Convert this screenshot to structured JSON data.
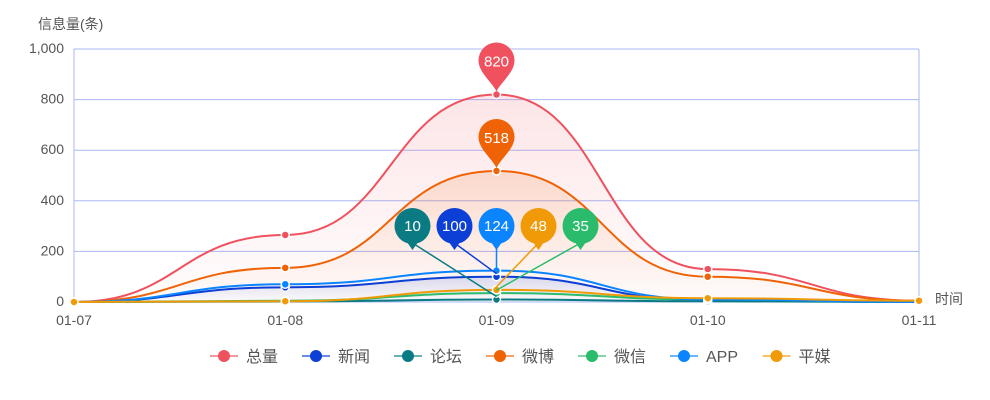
{
  "chart_data": {
    "type": "line",
    "ylabel": "信息量(条)",
    "xlabel": "时间",
    "categories": [
      "01-07",
      "01-08",
      "01-09",
      "01-10",
      "01-11"
    ],
    "ylim": [
      0,
      1000
    ],
    "yticks": [
      0,
      200,
      400,
      600,
      800,
      1000
    ],
    "ytick_labels": [
      "0",
      "200",
      "400",
      "600",
      "800",
      "1,000"
    ],
    "grid": true,
    "legend_position": "bottom",
    "series": [
      {
        "name": "总量",
        "color": "#f0515e",
        "values": [
          0,
          265,
          820,
          130,
          5
        ],
        "area": true,
        "max_label": "820"
      },
      {
        "name": "新闻",
        "color": "#0b3fd6",
        "values": [
          0,
          58,
          100,
          6,
          0
        ],
        "area": true,
        "max_label": "100"
      },
      {
        "name": "论坛",
        "color": "#0a7b83",
        "values": [
          0,
          2,
          10,
          3,
          0
        ],
        "area": false,
        "max_label": "10"
      },
      {
        "name": "微博",
        "color": "#ef6205",
        "values": [
          0,
          135,
          518,
          100,
          5
        ],
        "area": true,
        "max_label": "518"
      },
      {
        "name": "微信",
        "color": "#2bbb6c",
        "values": [
          0,
          5,
          35,
          10,
          0
        ],
        "area": false,
        "max_label": "35"
      },
      {
        "name": "APP",
        "color": "#0a84ff",
        "values": [
          0,
          70,
          124,
          10,
          0
        ],
        "area": false,
        "max_label": "124"
      },
      {
        "name": "平媒",
        "color": "#f09a08",
        "values": [
          0,
          3,
          48,
          15,
          5
        ],
        "area": false,
        "max_label": "48"
      }
    ]
  }
}
